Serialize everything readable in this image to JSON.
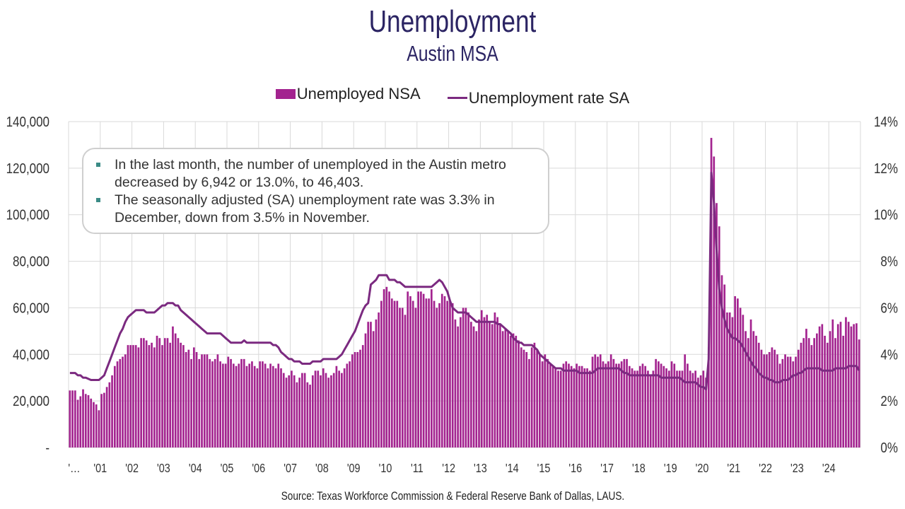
{
  "chart_data": {
    "type": "bar+line",
    "title": "Unemployment",
    "subtitle": "Austin MSA",
    "legend": [
      "Unemployed NSA",
      "Unemployment rate SA"
    ],
    "legend_position": "top",
    "grid": true,
    "x_start": "2000-01",
    "frequency": "monthly",
    "x_tick_labels": [
      "'…",
      "'01",
      "'02",
      "'03",
      "'04",
      "'05",
      "'06",
      "'07",
      "'08",
      "'09",
      "'10",
      "'11",
      "'12",
      "'13",
      "'14",
      "'15",
      "'16",
      "'17",
      "'18",
      "'19",
      "'20",
      "'21",
      "'22",
      "'23",
      "'24"
    ],
    "y_left": {
      "range": [
        0,
        140000
      ],
      "ticks": [
        "-",
        "20,000",
        "40,000",
        "60,000",
        "80,000",
        "100,000",
        "120,000",
        "140,000"
      ]
    },
    "y_right": {
      "range": [
        0,
        14
      ],
      "ticks": [
        "0%",
        "2%",
        "4%",
        "6%",
        "8%",
        "10%",
        "12%",
        "14%"
      ]
    },
    "series": [
      {
        "name": "Unemployed NSA",
        "type": "bar",
        "axis": "left",
        "unit": "thousands",
        "color": "#a3238f",
        "values": [
          24.5,
          24.5,
          24.5,
          20.5,
          22,
          25,
          23,
          22.5,
          21,
          19.5,
          18.5,
          16,
          23,
          23.5,
          26,
          28,
          31,
          35,
          37,
          38,
          39,
          40,
          44,
          44,
          44,
          44,
          43,
          47,
          47,
          46,
          44,
          45,
          43,
          48,
          47,
          44,
          47,
          47,
          45,
          52,
          49,
          47,
          45,
          44,
          41,
          42,
          38,
          43,
          41,
          38,
          40,
          40,
          40,
          38,
          37,
          38,
          40,
          37,
          36,
          36,
          39,
          38,
          36,
          35,
          36,
          38,
          38,
          35,
          36,
          37,
          35,
          34,
          37,
          37,
          36,
          34,
          36,
          35,
          34,
          36,
          34,
          32,
          30,
          31,
          33,
          31,
          28,
          30,
          32,
          32,
          28,
          27,
          31,
          33,
          33,
          31,
          34,
          32,
          30,
          31,
          32,
          35,
          33,
          32,
          34,
          36,
          37,
          40,
          41,
          41,
          42,
          44,
          49,
          54,
          54,
          50,
          55,
          58,
          63,
          68,
          69,
          67,
          64,
          63,
          63,
          60,
          60,
          57,
          67,
          65,
          63,
          60,
          67,
          67,
          66,
          64,
          64,
          68,
          63,
          60,
          62,
          66,
          65,
          63,
          63,
          62,
          55,
          52,
          56,
          60,
          60,
          58,
          54,
          52,
          50,
          55,
          59,
          56,
          57,
          54,
          53,
          58,
          56,
          53,
          50,
          51,
          50,
          48,
          49,
          48,
          46,
          43,
          42,
          41,
          38,
          43,
          45,
          42,
          40,
          37,
          40,
          38,
          36,
          35,
          34,
          33,
          33,
          36,
          37,
          36,
          35,
          34,
          36,
          35,
          35,
          34,
          34,
          33,
          39,
          40,
          39,
          40,
          37,
          36,
          37,
          40,
          38,
          36,
          36,
          37,
          38,
          38,
          35,
          34,
          33,
          33,
          35,
          36,
          35,
          33,
          31,
          33,
          38,
          37,
          36,
          35,
          34,
          33,
          37,
          36,
          33,
          33,
          33,
          40,
          36,
          33,
          32,
          33,
          30,
          31,
          33,
          30,
          43,
          133,
          125,
          105,
          95,
          74,
          70,
          58,
          58,
          56,
          65,
          64,
          60,
          57,
          50,
          47,
          55,
          50,
          48,
          45,
          42,
          40,
          40,
          41,
          43,
          42,
          40,
          36,
          38,
          40,
          39,
          39,
          37,
          39,
          42,
          45,
          47,
          51,
          47,
          44,
          47,
          49,
          52,
          53,
          48,
          45,
          50,
          55,
          47,
          53,
          54,
          48,
          56,
          54,
          52,
          53,
          53.345,
          46.403
        ]
      },
      {
        "name": "Unemployment rate SA",
        "type": "line",
        "axis": "right",
        "unit": "percent",
        "color": "#7b2a80",
        "values": [
          3.2,
          3.2,
          3.2,
          3.1,
          3.1,
          3.0,
          3.0,
          2.95,
          2.9,
          2.9,
          2.9,
          2.9,
          3.0,
          3.1,
          3.4,
          3.7,
          4.0,
          4.3,
          4.6,
          4.9,
          5.1,
          5.4,
          5.6,
          5.7,
          5.8,
          5.9,
          5.9,
          5.9,
          5.9,
          5.8,
          5.8,
          5.8,
          5.8,
          5.9,
          6.0,
          6.1,
          6.1,
          6.2,
          6.2,
          6.2,
          6.1,
          6.1,
          5.9,
          5.8,
          5.7,
          5.6,
          5.5,
          5.4,
          5.3,
          5.2,
          5.1,
          5.0,
          4.9,
          4.9,
          4.9,
          4.9,
          4.9,
          4.9,
          4.8,
          4.7,
          4.6,
          4.5,
          4.5,
          4.5,
          4.5,
          4.5,
          4.6,
          4.5,
          4.5,
          4.5,
          4.5,
          4.5,
          4.5,
          4.5,
          4.5,
          4.5,
          4.5,
          4.4,
          4.4,
          4.3,
          4.1,
          4.0,
          3.9,
          3.8,
          3.8,
          3.7,
          3.7,
          3.7,
          3.6,
          3.6,
          3.6,
          3.6,
          3.7,
          3.7,
          3.7,
          3.7,
          3.8,
          3.8,
          3.8,
          3.8,
          3.8,
          3.8,
          3.9,
          4.0,
          4.2,
          4.4,
          4.6,
          4.8,
          5.0,
          5.3,
          5.6,
          5.9,
          6.1,
          6.2,
          7.0,
          7.1,
          7.2,
          7.4,
          7.4,
          7.4,
          7.4,
          7.2,
          7.2,
          7.2,
          7.1,
          7.1,
          7.0,
          6.9,
          6.9,
          6.9,
          6.9,
          6.9,
          6.9,
          6.9,
          6.9,
          6.9,
          6.9,
          6.9,
          7.0,
          7.1,
          7.2,
          7.1,
          6.9,
          6.7,
          6.3,
          6.0,
          5.9,
          5.8,
          5.8,
          5.8,
          5.8,
          5.7,
          5.6,
          5.5,
          5.4,
          5.4,
          5.4,
          5.4,
          5.4,
          5.4,
          5.4,
          5.4,
          5.3,
          5.3,
          5.2,
          5.1,
          5.0,
          4.9,
          4.7,
          4.6,
          4.5,
          4.5,
          4.4,
          4.4,
          4.4,
          4.4,
          4.3,
          4.2,
          4.0,
          3.9,
          3.8,
          3.7,
          3.6,
          3.5,
          3.4,
          3.4,
          3.4,
          3.3,
          3.3,
          3.3,
          3.3,
          3.3,
          3.3,
          3.2,
          3.2,
          3.2,
          3.2,
          3.2,
          3.2,
          3.3,
          3.4,
          3.4,
          3.4,
          3.4,
          3.4,
          3.4,
          3.4,
          3.4,
          3.4,
          3.3,
          3.2,
          3.2,
          3.1,
          3.1,
          3.1,
          3.1,
          3.1,
          3.1,
          3.1,
          3.1,
          3.1,
          3.1,
          3.1,
          3.1,
          3.0,
          3.0,
          3.0,
          3.0,
          3.0,
          3.0,
          3.0,
          3.0,
          2.9,
          2.8,
          2.8,
          2.8,
          2.8,
          2.8,
          2.7,
          2.6,
          2.6,
          2.5,
          3.8,
          11.8,
          10.5,
          8.5,
          6.8,
          6.0,
          5.5,
          5.1,
          4.9,
          4.7,
          4.7,
          4.6,
          4.5,
          4.3,
          4.1,
          3.9,
          3.7,
          3.5,
          3.4,
          3.2,
          3.1,
          3.0,
          3.0,
          2.9,
          2.9,
          2.8,
          2.8,
          2.8,
          2.9,
          2.9,
          2.9,
          3.0,
          3.1,
          3.1,
          3.2,
          3.2,
          3.3,
          3.4,
          3.4,
          3.4,
          3.4,
          3.4,
          3.4,
          3.3,
          3.3,
          3.3,
          3.3,
          3.3,
          3.4,
          3.4,
          3.4,
          3.4,
          3.4,
          3.5,
          3.5,
          3.5,
          3.5,
          3.3
        ]
      }
    ],
    "source": "Source: Texas Workforce Commission & Federal Reserve Bank of Dallas, LAUS."
  },
  "annotation": {
    "bullets": [
      "In the last month, the number of unemployed in the Austin metro decreased by 6,942 or 13.0%, to 46,403.",
      "The seasonally adjusted (SA) unemployment rate was 3.3% in December, down from 3.5% in November."
    ],
    "bullet_color": "#3b8b86"
  },
  "colors": {
    "title": "#2b2463",
    "bar": "#a3238f",
    "line": "#7b2a80",
    "grid": "#d9d9d9"
  }
}
